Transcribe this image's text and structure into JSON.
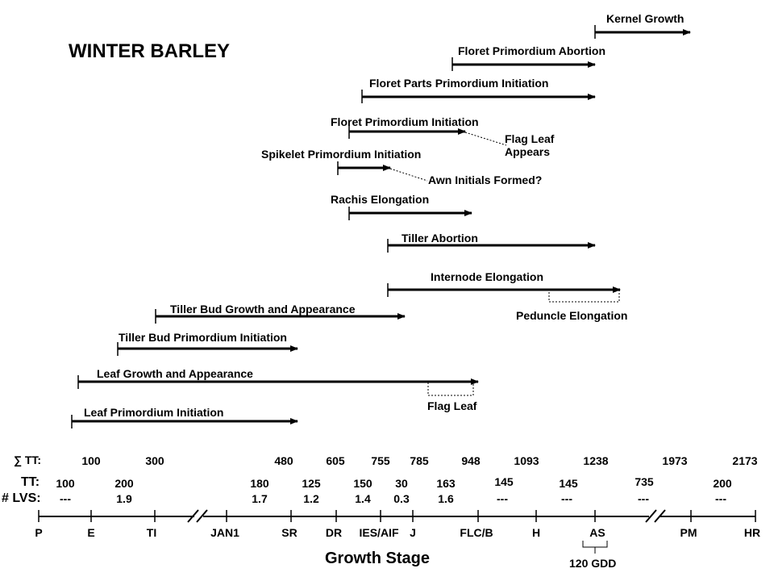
{
  "title": "WINTER BARLEY",
  "axis_title": "Growth Stage",
  "row_labels": {
    "sum_tt": "∑ TT:",
    "tt": "TT:",
    "lvs": "# LVS:"
  },
  "processes": [
    {
      "id": "kernel-growth",
      "label": "Kernel Growth"
    },
    {
      "id": "floret-primordium-abortion",
      "label": "Floret Primordium Abortion"
    },
    {
      "id": "floret-parts-primordium-initiation",
      "label": "Floret Parts Primordium Initiation"
    },
    {
      "id": "floret-primordium-initiation",
      "label": "Floret Primordium Initiation"
    },
    {
      "id": "spikelet-primordium-initiation",
      "label": "Spikelet Primordium Initiation"
    },
    {
      "id": "rachis-elongation",
      "label": "Rachis Elongation"
    },
    {
      "id": "tiller-abortion",
      "label": "Tiller Abortion"
    },
    {
      "id": "internode-elongation",
      "label": "Internode Elongation"
    },
    {
      "id": "tiller-bud-growth",
      "label": "Tiller Bud Growth and Appearance"
    },
    {
      "id": "tiller-bud-primordium",
      "label": "Tiller Bud Primordium Initiation"
    },
    {
      "id": "leaf-growth",
      "label": "Leaf Growth and Appearance"
    },
    {
      "id": "leaf-primordium",
      "label": "Leaf Primordium Initiation"
    }
  ],
  "annotations": {
    "flag_leaf_appears": "Flag Leaf\nAppears",
    "awn_initials": "Awn Initials Formed?",
    "peduncle_elongation": "Peduncle Elongation",
    "flag_leaf": "Flag Leaf",
    "gdd": "120 GDD"
  },
  "stages": [
    "P",
    "E",
    "TI",
    "JAN1",
    "SR",
    "DR",
    "IES/AIF",
    "J",
    "FLC/B",
    "H",
    "AS",
    "PM",
    "HR"
  ],
  "sum_tt": [
    "100",
    "300",
    "480",
    "605",
    "755",
    "785",
    "948",
    "1093",
    "1238",
    "1973",
    "2173"
  ],
  "tt": [
    "100",
    "200",
    "180",
    "125",
    "150",
    "30",
    "163",
    "145",
    "145",
    "735",
    "200"
  ],
  "lvs": [
    "---",
    "1.9",
    "1.7",
    "1.2",
    "1.4",
    "0.3",
    "1.6",
    "---",
    "---",
    "---",
    "---"
  ]
}
